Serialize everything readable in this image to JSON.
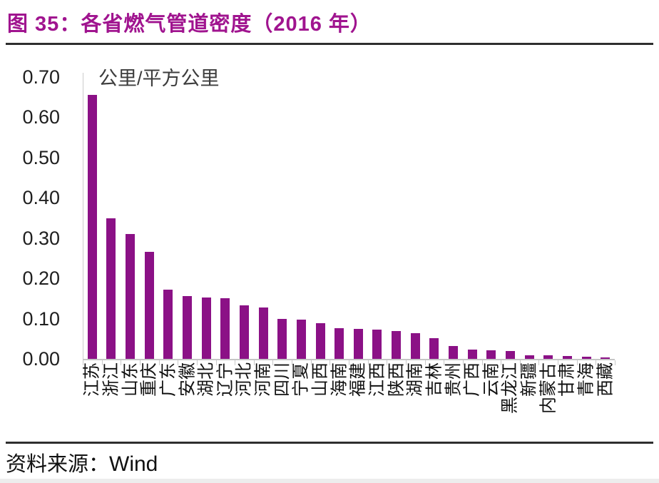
{
  "header": {
    "title": "图 35：各省燃气管道密度（2016 年）"
  },
  "footer": {
    "source_label": "资料来源：",
    "source_value": "Wind"
  },
  "colors": {
    "title_accent": "#A0148F",
    "bar": "#8B1186",
    "axis_gray": "#C9C9C9",
    "rule_dark": "#2E2E2E",
    "text": "#1F1F1F"
  },
  "chart_data": {
    "type": "bar",
    "title": "各省燃气管道密度（2016 年）",
    "unit_label": "公里/平方公里",
    "xlabel": "",
    "ylabel": "公里/平方公里",
    "categories": [
      "江苏",
      "浙江",
      "山东",
      "重庆",
      "广东",
      "安徽",
      "湖北",
      "辽宁",
      "河北",
      "河南",
      "四川",
      "宁夏",
      "山西",
      "海南",
      "福建",
      "江西",
      "陕西",
      "湖南",
      "吉林",
      "贵州",
      "广西",
      "云南",
      "黑龙江",
      "新疆",
      "内蒙古",
      "甘肃",
      "青海",
      "西藏"
    ],
    "values": [
      0.655,
      0.35,
      0.31,
      0.265,
      0.172,
      0.156,
      0.153,
      0.15,
      0.133,
      0.128,
      0.1,
      0.097,
      0.088,
      0.076,
      0.074,
      0.072,
      0.069,
      0.063,
      0.052,
      0.032,
      0.023,
      0.022,
      0.019,
      0.009,
      0.008,
      0.007,
      0.005,
      0.003
    ],
    "ylim": [
      0,
      0.7
    ],
    "ytick_step": 0.1,
    "ytick_labels": [
      "0.70",
      "0.60",
      "0.50",
      "0.40",
      "0.30",
      "0.20",
      "0.10",
      "0.00"
    ],
    "grid": false,
    "legend": "none",
    "x_labels_rotation_deg": -90
  }
}
